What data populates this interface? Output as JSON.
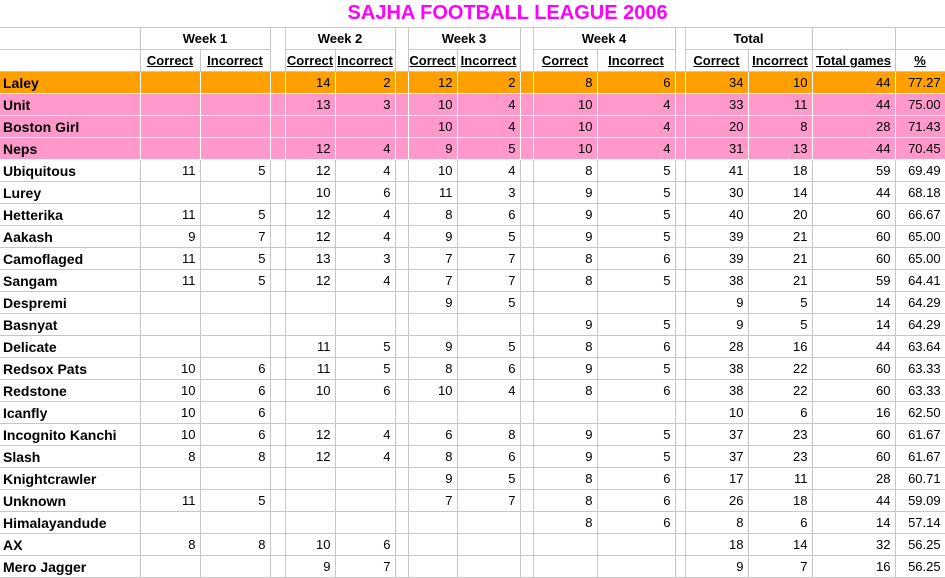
{
  "title": "SAJHA FOOTBALL LEAGUE 2006",
  "colors": {
    "title_text": "#FF00FF",
    "leader_row_fill": "#FFA000",
    "top_rows_fill": "#FF99CC",
    "gridline": "#C6C6C6"
  },
  "table": {
    "group_headers": [
      "Week 1",
      "Week 2",
      "Week 3",
      "Week 4",
      "Total"
    ],
    "sub_headers": {
      "correct": "Correct",
      "incorrect": "Incorrect",
      "total_games": "Total games",
      "percent": "%"
    },
    "value_columns": [
      "w1_correct",
      "w1_incorrect",
      "w2_correct",
      "w2_incorrect",
      "w3_correct",
      "w3_incorrect",
      "w4_correct",
      "w4_incorrect",
      "total_correct",
      "total_incorrect",
      "total_games",
      "percent"
    ],
    "rows": [
      {
        "name": "Laley",
        "fill": "orange",
        "values": [
          "",
          "",
          "14",
          "2",
          "12",
          "2",
          "8",
          "6",
          "34",
          "10",
          "44",
          "77.27"
        ]
      },
      {
        "name": "Unit",
        "fill": "pink",
        "values": [
          "",
          "",
          "13",
          "3",
          "10",
          "4",
          "10",
          "4",
          "33",
          "11",
          "44",
          "75.00"
        ]
      },
      {
        "name": "Boston Girl",
        "fill": "pink",
        "values": [
          "",
          "",
          "",
          "",
          "10",
          "4",
          "10",
          "4",
          "20",
          "8",
          "28",
          "71.43"
        ]
      },
      {
        "name": "Neps",
        "fill": "pink",
        "values": [
          "",
          "",
          "12",
          "4",
          "9",
          "5",
          "10",
          "4",
          "31",
          "13",
          "44",
          "70.45"
        ]
      },
      {
        "name": "Ubiquitous",
        "fill": "none",
        "values": [
          "11",
          "5",
          "12",
          "4",
          "10",
          "4",
          "8",
          "5",
          "41",
          "18",
          "59",
          "69.49"
        ]
      },
      {
        "name": "Lurey",
        "fill": "none",
        "values": [
          "",
          "",
          "10",
          "6",
          "11",
          "3",
          "9",
          "5",
          "30",
          "14",
          "44",
          "68.18"
        ]
      },
      {
        "name": "Hetterika",
        "fill": "none",
        "values": [
          "11",
          "5",
          "12",
          "4",
          "8",
          "6",
          "9",
          "5",
          "40",
          "20",
          "60",
          "66.67"
        ]
      },
      {
        "name": "Aakash",
        "fill": "none",
        "values": [
          "9",
          "7",
          "12",
          "4",
          "9",
          "5",
          "9",
          "5",
          "39",
          "21",
          "60",
          "65.00"
        ]
      },
      {
        "name": "Camoflaged",
        "fill": "none",
        "values": [
          "11",
          "5",
          "13",
          "3",
          "7",
          "7",
          "8",
          "6",
          "39",
          "21",
          "60",
          "65.00"
        ]
      },
      {
        "name": "Sangam",
        "fill": "none",
        "values": [
          "11",
          "5",
          "12",
          "4",
          "7",
          "7",
          "8",
          "5",
          "38",
          "21",
          "59",
          "64.41"
        ]
      },
      {
        "name": "Despremi",
        "fill": "none",
        "values": [
          "",
          "",
          "",
          "",
          "9",
          "5",
          "",
          "",
          "9",
          "5",
          "14",
          "64.29"
        ]
      },
      {
        "name": "Basnyat",
        "fill": "none",
        "values": [
          "",
          "",
          "",
          "",
          "",
          "",
          "9",
          "5",
          "9",
          "5",
          "14",
          "64.29"
        ]
      },
      {
        "name": "Delicate",
        "fill": "none",
        "values": [
          "",
          "",
          "11",
          "5",
          "9",
          "5",
          "8",
          "6",
          "28",
          "16",
          "44",
          "63.64"
        ]
      },
      {
        "name": "Redsox Pats",
        "fill": "none",
        "values": [
          "10",
          "6",
          "11",
          "5",
          "8",
          "6",
          "9",
          "5",
          "38",
          "22",
          "60",
          "63.33"
        ]
      },
      {
        "name": "Redstone",
        "fill": "none",
        "values": [
          "10",
          "6",
          "10",
          "6",
          "10",
          "4",
          "8",
          "6",
          "38",
          "22",
          "60",
          "63.33"
        ]
      },
      {
        "name": "Icanfly",
        "fill": "none",
        "values": [
          "10",
          "6",
          "",
          "",
          "",
          "",
          "",
          "",
          "10",
          "6",
          "16",
          "62.50"
        ]
      },
      {
        "name": "Incognito Kanchi",
        "fill": "none",
        "values": [
          "10",
          "6",
          "12",
          "4",
          "6",
          "8",
          "9",
          "5",
          "37",
          "23",
          "60",
          "61.67"
        ]
      },
      {
        "name": "Slash",
        "fill": "none",
        "values": [
          "8",
          "8",
          "12",
          "4",
          "8",
          "6",
          "9",
          "5",
          "37",
          "23",
          "60",
          "61.67"
        ]
      },
      {
        "name": "Knightcrawler",
        "fill": "none",
        "values": [
          "",
          "",
          "",
          "",
          "9",
          "5",
          "8",
          "6",
          "17",
          "11",
          "28",
          "60.71"
        ]
      },
      {
        "name": "Unknown",
        "fill": "none",
        "values": [
          "11",
          "5",
          "",
          "",
          "7",
          "7",
          "8",
          "6",
          "26",
          "18",
          "44",
          "59.09"
        ]
      },
      {
        "name": "Himalayandude",
        "fill": "none",
        "values": [
          "",
          "",
          "",
          "",
          "",
          "",
          "8",
          "6",
          "8",
          "6",
          "14",
          "57.14"
        ]
      },
      {
        "name": "AX",
        "fill": "none",
        "values": [
          "8",
          "8",
          "10",
          "6",
          "",
          "",
          "",
          "",
          "18",
          "14",
          "32",
          "56.25"
        ]
      },
      {
        "name": "Mero Jagger",
        "fill": "none",
        "values": [
          "",
          "",
          "9",
          "7",
          "",
          "",
          "",
          "",
          "9",
          "7",
          "16",
          "56.25"
        ]
      }
    ]
  }
}
